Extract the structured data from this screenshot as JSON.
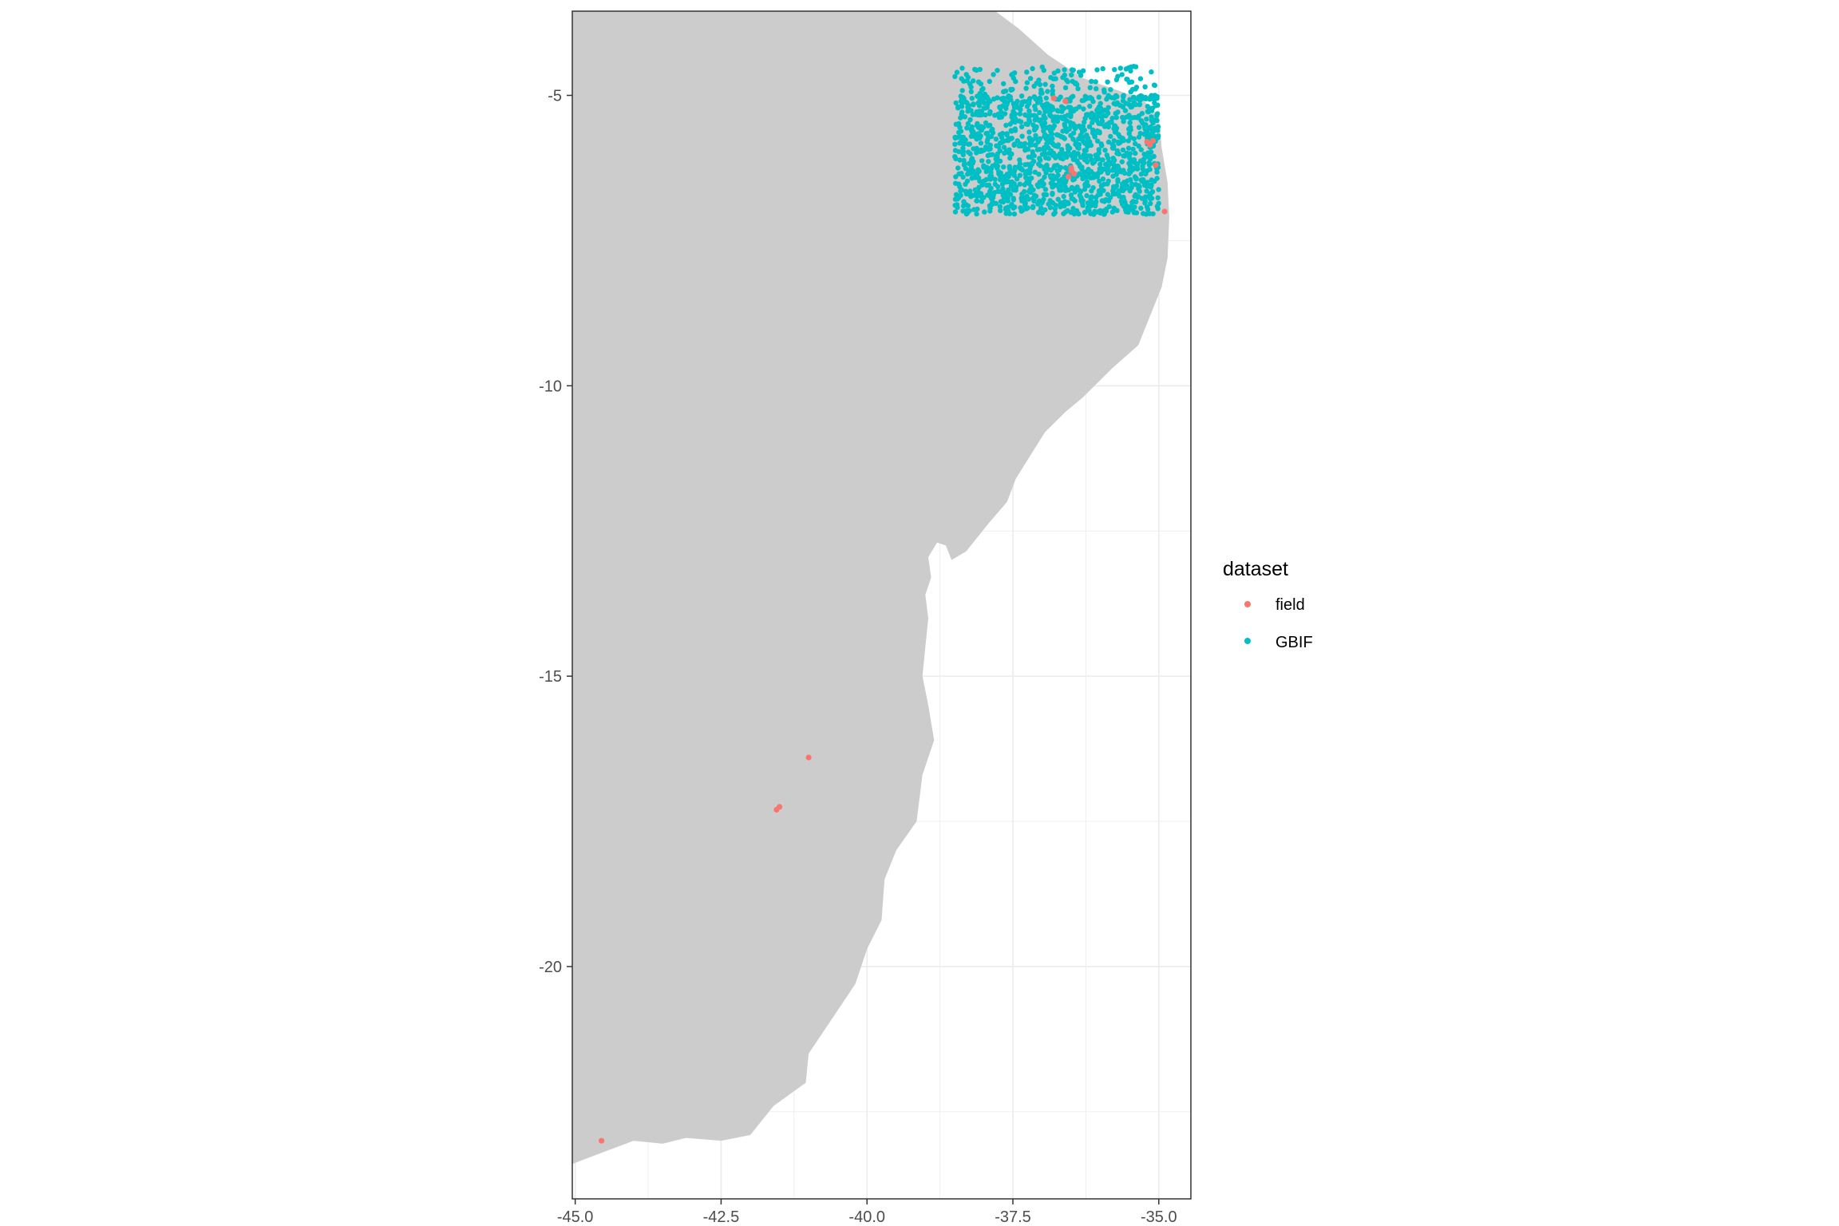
{
  "chart_data": {
    "type": "scatter",
    "title": "",
    "xlabel": "",
    "ylabel": "",
    "xlim": [
      -45.05,
      -34.45
    ],
    "ylim": [
      -24.0,
      -3.55
    ],
    "x_ticks": [
      -45.0,
      -42.5,
      -40.0,
      -37.5,
      -35.0
    ],
    "x_tick_labels": [
      "-45.0",
      "-42.5",
      "-40.0",
      "-37.5",
      "-35.0"
    ],
    "y_ticks": [
      -5,
      -10,
      -15,
      -20
    ],
    "y_tick_labels": [
      "-5",
      "-10",
      "-15",
      "-20"
    ],
    "grid": true,
    "background_land_color": "#cccccc",
    "legend": {
      "title": "dataset",
      "placement": "right",
      "entries": [
        {
          "label": "field",
          "color": "#f8766d"
        },
        {
          "label": "GBIF",
          "color": "#00bfc4"
        }
      ]
    },
    "series": [
      {
        "name": "field",
        "color": "#f8766d",
        "points": [
          [
            -36.8,
            -5.05
          ],
          [
            -36.6,
            -5.1
          ],
          [
            -35.2,
            -5.8
          ],
          [
            -35.15,
            -5.85
          ],
          [
            -35.1,
            -5.78
          ],
          [
            -36.5,
            -6.3
          ],
          [
            -36.45,
            -6.35
          ],
          [
            -36.55,
            -6.4
          ],
          [
            -36.5,
            -6.25
          ],
          [
            -35.05,
            -6.2
          ],
          [
            -34.9,
            -7.0
          ],
          [
            -41.0,
            -16.4
          ],
          [
            -41.55,
            -17.3
          ],
          [
            -41.5,
            -17.25
          ],
          [
            -44.55,
            -23.0
          ]
        ]
      },
      {
        "name": "GBIF",
        "color": "#00bfc4",
        "region": {
          "lon": [
            -38.5,
            -35.0
          ],
          "lat": [
            -7.05,
            -4.5
          ]
        },
        "density_note_points": 1500
      }
    ]
  }
}
